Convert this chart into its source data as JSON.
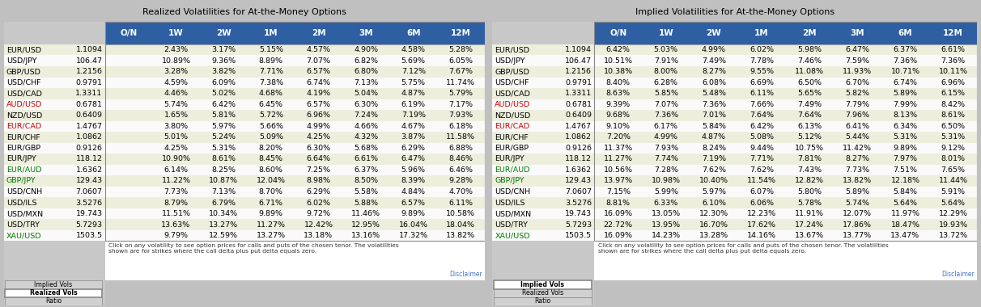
{
  "title_left": "Realized Volatilities for At-the-Money Options",
  "title_right": "Implied Volatilities for At-the-Money Options",
  "col_headers": [
    "O/N",
    "1W",
    "2W",
    "1M",
    "2M",
    "3M",
    "6M",
    "12M"
  ],
  "row_labels": [
    [
      "EUR/USD",
      "1.1094",
      "black"
    ],
    [
      "USD/JPY",
      "106.47",
      "black"
    ],
    [
      "GBP/USD",
      "1.2156",
      "black"
    ],
    [
      "USD/CHF",
      "0.9791",
      "black"
    ],
    [
      "USD/CAD",
      "1.3311",
      "black"
    ],
    [
      "AUD/USD",
      "0.6781",
      "#cc0000"
    ],
    [
      "NZD/USD",
      "0.6409",
      "black"
    ],
    [
      "EUR/CAD",
      "1.4767",
      "#cc0000"
    ],
    [
      "EUR/CHF",
      "1.0862",
      "black"
    ],
    [
      "EUR/GBP",
      "0.9126",
      "black"
    ],
    [
      "EUR/JPY",
      "118.12",
      "black"
    ],
    [
      "EUR/AUD",
      "1.6362",
      "#007700"
    ],
    [
      "GBP/JPY",
      "129.43",
      "#007700"
    ],
    [
      "USD/CNH",
      "7.0607",
      "black"
    ],
    [
      "USD/ILS",
      "3.5276",
      "black"
    ],
    [
      "USD/MXN",
      "19.743",
      "black"
    ],
    [
      "USD/TRY",
      "5.7293",
      "black"
    ],
    [
      "XAU/USD",
      "1503.5",
      "#007700"
    ]
  ],
  "realized_data": [
    [
      "",
      "2.43%",
      "3.17%",
      "5.15%",
      "4.57%",
      "4.90%",
      "4.58%",
      "5.28%"
    ],
    [
      "",
      "10.89%",
      "9.36%",
      "8.89%",
      "7.07%",
      "6.82%",
      "5.69%",
      "6.05%"
    ],
    [
      "",
      "3.28%",
      "3.82%",
      "7.71%",
      "6.57%",
      "6.80%",
      "7.12%",
      "7.67%"
    ],
    [
      "",
      "4.59%",
      "6.09%",
      "7.38%",
      "6.74%",
      "7.13%",
      "5.75%",
      "11.74%"
    ],
    [
      "",
      "4.46%",
      "5.02%",
      "4.68%",
      "4.19%",
      "5.04%",
      "4.87%",
      "5.79%"
    ],
    [
      "",
      "5.74%",
      "6.42%",
      "6.45%",
      "6.57%",
      "6.30%",
      "6.19%",
      "7.17%"
    ],
    [
      "",
      "1.65%",
      "5.81%",
      "5.72%",
      "6.96%",
      "7.24%",
      "7.19%",
      "7.93%"
    ],
    [
      "",
      "3.80%",
      "5.97%",
      "5.66%",
      "4.99%",
      "4.66%",
      "4.67%",
      "6.18%"
    ],
    [
      "",
      "5.01%",
      "5.24%",
      "5.09%",
      "4.25%",
      "4.32%",
      "3.87%",
      "11.58%"
    ],
    [
      "",
      "4.25%",
      "5.31%",
      "8.20%",
      "6.30%",
      "5.68%",
      "6.29%",
      "6.88%"
    ],
    [
      "",
      "10.90%",
      "8.61%",
      "8.45%",
      "6.64%",
      "6.61%",
      "6.47%",
      "8.46%"
    ],
    [
      "",
      "6.14%",
      "8.25%",
      "8.60%",
      "7.25%",
      "6.37%",
      "5.96%",
      "6.46%"
    ],
    [
      "",
      "11.22%",
      "10.87%",
      "12.04%",
      "8.98%",
      "8.50%",
      "8.39%",
      "9.28%"
    ],
    [
      "",
      "7.73%",
      "7.13%",
      "8.70%",
      "6.29%",
      "5.58%",
      "4.84%",
      "4.70%"
    ],
    [
      "",
      "8.79%",
      "6.79%",
      "6.71%",
      "6.02%",
      "5.88%",
      "6.57%",
      "6.11%"
    ],
    [
      "",
      "11.51%",
      "10.34%",
      "9.89%",
      "9.72%",
      "11.46%",
      "9.89%",
      "10.58%"
    ],
    [
      "",
      "13.63%",
      "13.27%",
      "11.27%",
      "12.42%",
      "12.95%",
      "16.04%",
      "18.04%"
    ],
    [
      "",
      "9.79%",
      "12.59%",
      "13.27%",
      "13.18%",
      "13.16%",
      "17.32%",
      "13.82%"
    ]
  ],
  "implied_data": [
    [
      "6.42%",
      "5.03%",
      "4.99%",
      "6.02%",
      "5.98%",
      "6.47%",
      "6.37%",
      "6.61%"
    ],
    [
      "10.51%",
      "7.91%",
      "7.49%",
      "7.78%",
      "7.46%",
      "7.59%",
      "7.36%",
      "7.36%"
    ],
    [
      "10.38%",
      "8.00%",
      "8.27%",
      "9.55%",
      "11.08%",
      "11.93%",
      "10.71%",
      "10.11%"
    ],
    [
      "8.40%",
      "6.28%",
      "6.08%",
      "6.69%",
      "6.50%",
      "6.70%",
      "6.74%",
      "6.96%"
    ],
    [
      "8.63%",
      "5.85%",
      "5.48%",
      "6.11%",
      "5.65%",
      "5.82%",
      "5.89%",
      "6.15%"
    ],
    [
      "9.39%",
      "7.07%",
      "7.36%",
      "7.66%",
      "7.49%",
      "7.79%",
      "7.99%",
      "8.42%"
    ],
    [
      "9.68%",
      "7.36%",
      "7.01%",
      "7.64%",
      "7.64%",
      "7.96%",
      "8.13%",
      "8.61%"
    ],
    [
      "9.10%",
      "6.17%",
      "5.84%",
      "6.42%",
      "6.13%",
      "6.41%",
      "6.34%",
      "6.50%"
    ],
    [
      "7.20%",
      "4.99%",
      "4.87%",
      "5.08%",
      "5.12%",
      "5.44%",
      "5.31%",
      "5.31%"
    ],
    [
      "11.37%",
      "7.93%",
      "8.24%",
      "9.44%",
      "10.75%",
      "11.42%",
      "9.89%",
      "9.12%"
    ],
    [
      "11.27%",
      "7.74%",
      "7.19%",
      "7.71%",
      "7.81%",
      "8.27%",
      "7.97%",
      "8.01%"
    ],
    [
      "10.56%",
      "7.28%",
      "7.62%",
      "7.62%",
      "7.43%",
      "7.73%",
      "7.51%",
      "7.65%"
    ],
    [
      "13.97%",
      "10.98%",
      "10.40%",
      "11.54%",
      "12.82%",
      "13.82%",
      "12.18%",
      "11.44%"
    ],
    [
      "7.15%",
      "5.99%",
      "5.97%",
      "6.07%",
      "5.80%",
      "5.89%",
      "5.84%",
      "5.91%"
    ],
    [
      "8.81%",
      "6.33%",
      "6.10%",
      "6.06%",
      "5.78%",
      "5.74%",
      "5.64%",
      "5.64%"
    ],
    [
      "16.09%",
      "13.05%",
      "12.30%",
      "12.23%",
      "11.91%",
      "12.07%",
      "11.97%",
      "12.29%"
    ],
    [
      "22.72%",
      "13.95%",
      "16.70%",
      "17.62%",
      "17.24%",
      "17.86%",
      "18.47%",
      "19.93%"
    ],
    [
      "16.09%",
      "14.23%",
      "13.28%",
      "14.16%",
      "13.67%",
      "13.77%",
      "13.47%",
      "13.72%"
    ]
  ],
  "footer_text": "Click on any volatility to see option prices for calls and puts of the chosen tenor. The volatilities\nshown are for strikes where the call delta plus put delta equals zero.",
  "disclaimer_text": "Disclaimer",
  "tab_labels": [
    "Implied Vols",
    "Realized Vols",
    "Ratio"
  ],
  "active_tab_left": "Realized Vols",
  "active_tab_right": "Implied Vols",
  "header_bg": "#2e5fa3",
  "header_text_color": "#ffffff",
  "row_bg_odd": "#eeeedd",
  "row_bg_even": "#fafafa",
  "label_bg": "#c8c8c8",
  "tab_active_bg": "#ffffff",
  "tab_inactive_bg": "#d0d0d0",
  "outer_bg": "#c0c0c0",
  "panel_bg": "#ffffff",
  "title_fontsize": 8.0,
  "data_fontsize": 6.8,
  "label_fontsize": 6.8,
  "header_fontsize": 7.5
}
